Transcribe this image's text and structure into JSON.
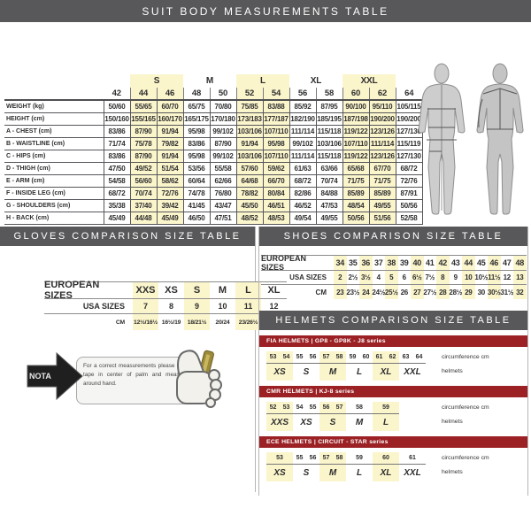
{
  "colors": {
    "header_gray": "#58585A",
    "accent_red": "#9B2125",
    "highlight_yellow": "#FBF5CC",
    "letter_red": "#C41414"
  },
  "suit_table": {
    "title": "SUIT BODY MEASUREMENTS TABLE",
    "groups": [
      {
        "label": "S",
        "span": 2,
        "highlight": true
      },
      {
        "label": "M",
        "span": 2,
        "highlight": false
      },
      {
        "label": "L",
        "span": 2,
        "highlight": true
      },
      {
        "label": "XL",
        "span": 2,
        "highlight": false
      },
      {
        "label": "XXL",
        "span": 2,
        "highlight": true
      }
    ],
    "sizes": [
      "42",
      "44",
      "46",
      "48",
      "50",
      "52",
      "54",
      "56",
      "58",
      "60",
      "62",
      "64"
    ],
    "highlight_columns": [
      1,
      2,
      5,
      6,
      9,
      10
    ],
    "rows": [
      {
        "label": "WEIGHT (kg)",
        "values": [
          "50/60",
          "55/65",
          "60/70",
          "65/75",
          "70/80",
          "75/85",
          "83/88",
          "85/92",
          "87/95",
          "90/100",
          "95/110",
          "105/115"
        ]
      },
      {
        "label": "HEIGHT (cm)",
        "values": [
          "150/160",
          "155/165",
          "160/170",
          "165/175",
          "170/180",
          "173/183",
          "177/187",
          "182/190",
          "185/195",
          "187/198",
          "190/200",
          "190/200"
        ]
      },
      {
        "label": "A - CHEST (cm)",
        "values": [
          "83/86",
          "87/90",
          "91/94",
          "95/98",
          "99/102",
          "103/106",
          "107/110",
          "111/114",
          "115/118",
          "119/122",
          "123/126",
          "127/130"
        ]
      },
      {
        "label": "B - WAISTLINE (cm)",
        "values": [
          "71/74",
          "75/78",
          "79/82",
          "83/86",
          "87/90",
          "91/94",
          "95/98",
          "99/102",
          "103/106",
          "107/110",
          "111/114",
          "115/119"
        ]
      },
      {
        "label": "C - HIPS (cm)",
        "values": [
          "83/86",
          "87/90",
          "91/94",
          "95/98",
          "99/102",
          "103/106",
          "107/110",
          "111/114",
          "115/118",
          "119/122",
          "123/126",
          "127/130"
        ]
      },
      {
        "label": "D - THIGH (cm)",
        "values": [
          "47/50",
          "49/52",
          "51/54",
          "53/56",
          "55/58",
          "57/60",
          "59/62",
          "61/63",
          "63/66",
          "65/68",
          "67/70",
          "68/72"
        ]
      },
      {
        "label": "E - ARM (cm)",
        "values": [
          "54/58",
          "56/60",
          "58/62",
          "60/64",
          "62/66",
          "64/68",
          "66/70",
          "68/72",
          "70/74",
          "71/75",
          "71/75",
          "72/76"
        ]
      },
      {
        "label": "F - INSIDE LEG (cm)",
        "values": [
          "68/72",
          "70/74",
          "72/76",
          "74/78",
          "76/80",
          "78/82",
          "80/84",
          "82/86",
          "84/88",
          "85/89",
          "85/89",
          "87/91"
        ]
      },
      {
        "label": "G - SHOULDERS (cm)",
        "values": [
          "35/38",
          "37/40",
          "39/42",
          "41/45",
          "43/47",
          "45/50",
          "46/51",
          "46/52",
          "47/53",
          "48/54",
          "49/55",
          "50/56"
        ]
      },
      {
        "label": "H - BACK (cm)",
        "values": [
          "45/49",
          "44/48",
          "45/49",
          "46/50",
          "47/51",
          "48/52",
          "48/53",
          "49/54",
          "49/55",
          "50/56",
          "51/56",
          "52/58"
        ]
      }
    ],
    "figure_letters": [
      "A",
      "B",
      "C",
      "D",
      "F",
      "G",
      "E",
      "H"
    ]
  },
  "gloves_table": {
    "title": "GLOVES COMPARISON SIZE TABLE",
    "rows": [
      {
        "label": "EUROPEAN SIZES",
        "values": [
          "XXS",
          "XS",
          "S",
          "M",
          "L",
          "XL"
        ]
      },
      {
        "label": "USA SIZES",
        "values": [
          "7",
          "8",
          "9",
          "10",
          "11",
          "12"
        ]
      },
      {
        "label": "CM",
        "values": [
          "12½/16½",
          "16½/19",
          "18/21½",
          "20/24",
          "23/26½",
          "25½/30"
        ]
      }
    ],
    "highlight_columns": [
      0,
      2,
      4
    ]
  },
  "nota": {
    "label": "NOTA",
    "text": "For a correct measurements please hold tape in center of palm and measure around hand."
  },
  "shoes_table": {
    "title": "SHOES COMPARISON SIZE TABLE",
    "rows": [
      {
        "label": "EUROPEAN SIZES",
        "values": [
          "34",
          "35",
          "36",
          "37",
          "38",
          "39",
          "40",
          "41",
          "42",
          "43",
          "44",
          "45",
          "46",
          "47",
          "48"
        ]
      },
      {
        "label": "USA SIZES",
        "values": [
          "2",
          "2½",
          "3½",
          "4",
          "5",
          "6",
          "6½",
          "7½",
          "8",
          "9",
          "10",
          "10½",
          "11½",
          "12",
          "13"
        ]
      },
      {
        "label": "CM",
        "values": [
          "23",
          "23½",
          "24",
          "24½",
          "25½",
          "26",
          "27",
          "27½",
          "28",
          "28½",
          "29",
          "30",
          "30½",
          "31½",
          "32"
        ]
      }
    ],
    "highlight_columns": [
      0,
      2,
      4,
      6,
      8,
      10,
      12,
      14
    ]
  },
  "helmets": {
    "title": "HELMETS COMPARISON SIZE TABLE",
    "col_labels": [
      "circumference cm",
      "helmets"
    ],
    "sections": [
      {
        "header": "FIA HELMETS  |  GP8 - GP8K - J8 series",
        "groups": [
          {
            "circ": [
              "53",
              "54"
            ],
            "size": "XS",
            "highlight": true
          },
          {
            "circ": [
              "55",
              "56"
            ],
            "size": "S",
            "highlight": false
          },
          {
            "circ": [
              "57",
              "58"
            ],
            "size": "M",
            "highlight": true
          },
          {
            "circ": [
              "59",
              "60"
            ],
            "size": "L",
            "highlight": false
          },
          {
            "circ": [
              "61",
              "62"
            ],
            "size": "XL",
            "highlight": true
          },
          {
            "circ": [
              "63",
              "64"
            ],
            "size": "XXL",
            "highlight": false
          }
        ]
      },
      {
        "header": "CMR HELMETS  |  KJ-8 series",
        "groups": [
          {
            "circ": [
              "52",
              "53"
            ],
            "size": "XXS",
            "highlight": true
          },
          {
            "circ": [
              "54",
              "55"
            ],
            "size": "XS",
            "highlight": false
          },
          {
            "circ": [
              "56",
              "57"
            ],
            "size": "S",
            "highlight": true
          },
          {
            "circ": [
              "58"
            ],
            "size": "M",
            "highlight": false
          },
          {
            "circ": [
              "59"
            ],
            "size": "L",
            "highlight": true
          }
        ]
      },
      {
        "header": "ECE HELMETS  |  CIRCUIT - STAR series",
        "groups": [
          {
            "circ": [
              "53"
            ],
            "size": "XS",
            "highlight": true
          },
          {
            "circ": [
              "55",
              "56"
            ],
            "size": "S",
            "highlight": false
          },
          {
            "circ": [
              "57",
              "58"
            ],
            "size": "M",
            "highlight": true
          },
          {
            "circ": [
              "59"
            ],
            "size": "L",
            "highlight": false
          },
          {
            "circ": [
              "60"
            ],
            "size": "XL",
            "highlight": true
          },
          {
            "circ": [
              "61"
            ],
            "size": "XXL",
            "highlight": false
          }
        ]
      }
    ]
  }
}
